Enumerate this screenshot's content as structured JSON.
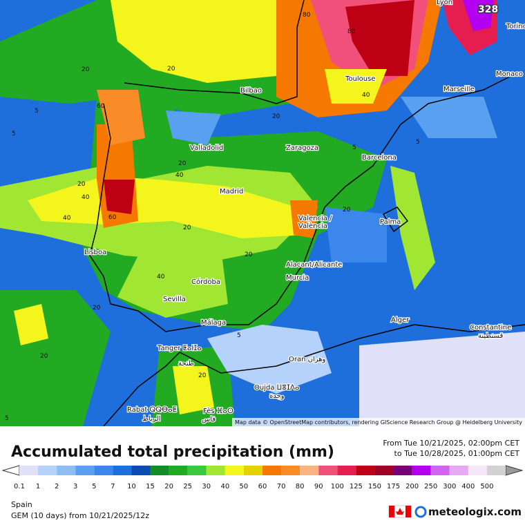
{
  "map": {
    "max_label": "328",
    "cities": [
      "Lyon",
      "Torino",
      "Monaco",
      "Marseille",
      "Toulouse",
      "Bilbao",
      "Valladolid",
      "Zaragoza",
      "Barcelona",
      "Madrid",
      "Valencia /",
      "València",
      "Palma",
      "Lisboa",
      "Alacant/Alicante",
      "Murcia",
      "Córdoba",
      "Sevilla",
      "Málaga",
      "Alger",
      "Constantine",
      "قسنطينة",
      "Tanger ⵟⴰⵏⵊⴰ",
      "طنجة",
      "Oran وهران",
      "Oujda ⵡⴻⵊⴷⴰ",
      "وجدة",
      "Rabat ⵕⵕⴱⴰⵟ",
      "الرباط",
      "Fès ⴼⴰⵙ",
      "فاس"
    ],
    "contour_labels": [
      "80",
      "80",
      "20",
      "20",
      "5",
      "60",
      "5",
      "40",
      "20",
      "5",
      "5",
      "20",
      "40",
      "20",
      "40",
      "40",
      "60",
      "20",
      "20",
      "20",
      "40",
      "20",
      "5",
      "20",
      "5",
      "20"
    ],
    "attribution": "Map data © OpenStreetMap contributors, rendering GIScience Research Group @ Heidelberg University"
  },
  "footer": {
    "title": "Accumulated total precipitation (mm)",
    "from": "From Tue 10/21/2025, 02:00pm CET",
    "to": "to Tue 10/28/2025, 01:00pm CET",
    "region": "Spain",
    "model": "GEM (10 days) from 10/21/2025/12z",
    "brand": "meteologix.com"
  },
  "legend": {
    "items": [
      {
        "label": "0.1",
        "color": "#e0e0f8"
      },
      {
        "label": "1",
        "color": "#b4d2fa"
      },
      {
        "label": "2",
        "color": "#8cbef5"
      },
      {
        "label": "3",
        "color": "#5aa0f0"
      },
      {
        "label": "5",
        "color": "#3c87eb"
      },
      {
        "label": "7",
        "color": "#1e6edc"
      },
      {
        "label": "10",
        "color": "#0a4bb4"
      },
      {
        "label": "15",
        "color": "#148c28"
      },
      {
        "label": "20",
        "color": "#23aa23"
      },
      {
        "label": "25",
        "color": "#3cc83c"
      },
      {
        "label": "30",
        "color": "#a0e632"
      },
      {
        "label": "40",
        "color": "#f5f51e"
      },
      {
        "label": "50",
        "color": "#e6d200"
      },
      {
        "label": "60",
        "color": "#f57800"
      },
      {
        "label": "70",
        "color": "#fa8c28"
      },
      {
        "label": "80",
        "color": "#fab482"
      },
      {
        "label": "90",
        "color": "#f0507a"
      },
      {
        "label": "100",
        "color": "#e61e50"
      },
      {
        "label": "125",
        "color": "#be0014"
      },
      {
        "label": "150",
        "color": "#a00028"
      },
      {
        "label": "175",
        "color": "#780078"
      },
      {
        "label": "200",
        "color": "#b400f0"
      },
      {
        "label": "250",
        "color": "#d264f0"
      },
      {
        "label": "300",
        "color": "#e6aaf5"
      },
      {
        "label": "400",
        "color": "#f5e6fa"
      },
      {
        "label": "500",
        "color": "#d2d2d2"
      }
    ]
  }
}
